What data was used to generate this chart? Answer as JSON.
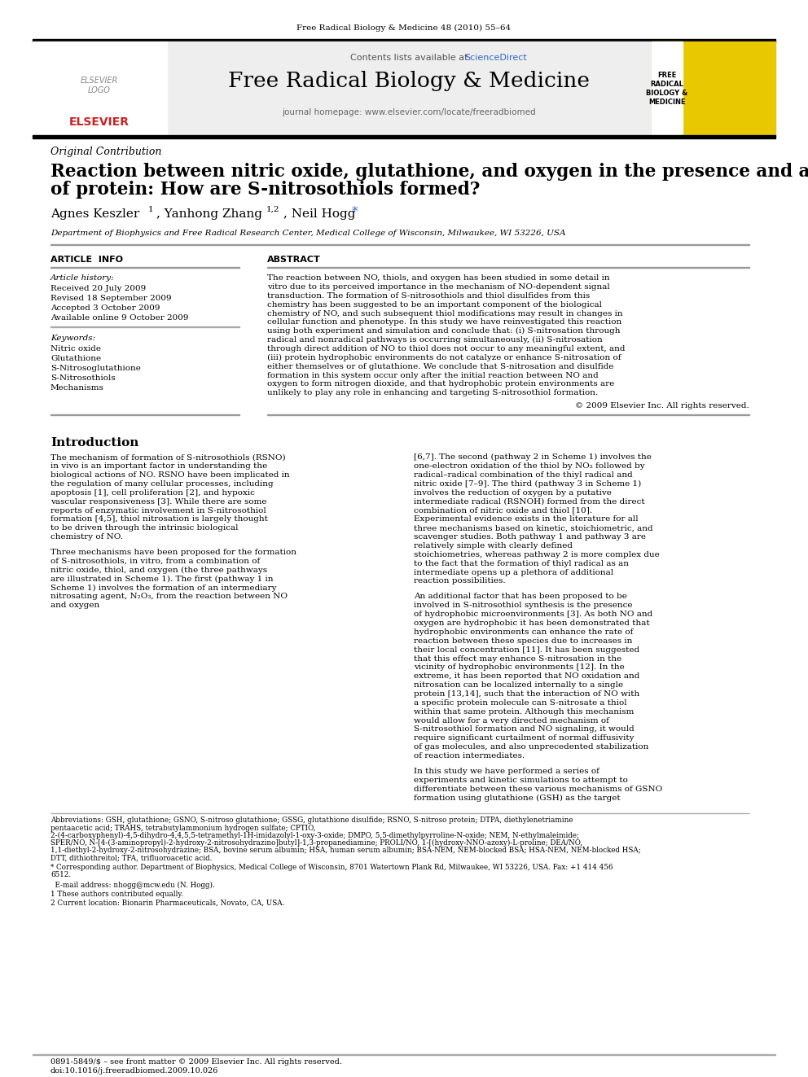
{
  "journal_header": "Free Radical Biology & Medicine 48 (2010) 55–64",
  "contents_line": "Contents lists available at ",
  "sciencedirect": "ScienceDirect",
  "journal_name": "Free Radical Biology & Medicine",
  "journal_homepage": "journal homepage: www.elsevier.com/locate/freeradbiomed",
  "article_type": "Original Contribution",
  "title_line1": "Reaction between nitric oxide, glutathione, and oxygen in the presence and absence",
  "title_line2": "of protein: How are S-nitrosothiols formed?",
  "affiliation": "Department of Biophysics and Free Radical Research Center, Medical College of Wisconsin, Milwaukee, WI 53226, USA",
  "article_info_header": "ARTICLE  INFO",
  "abstract_header": "ABSTRACT",
  "article_history_label": "Article history:",
  "received": "Received 20 July 2009",
  "revised": "Revised 18 September 2009",
  "accepted": "Accepted 3 October 2009",
  "online": "Available online 9 October 2009",
  "keywords_label": "Keywords:",
  "keywords": [
    "Nitric oxide",
    "Glutathione",
    "S-Nitrosoglutathione",
    "S-Nitrosothiols",
    "Mechanisms"
  ],
  "abstract_text": "The reaction between NO, thiols, and oxygen has been studied in some detail in vitro due to its perceived importance in the mechanism of NO-dependent signal transduction. The formation of S-nitrosothiols and thiol disulfides from this chemistry has been suggested to be an important component of the biological chemistry of NO, and such subsequent thiol modifications may result in changes in cellular function and phenotype. In this study we have reinvestigated this reaction using both experiment and simulation and conclude that: (i) S-nitrosation through radical and nonradical pathways is occurring simultaneously, (ii) S-nitrosation through direct addition of NO to thiol does not occur to any meaningful extent, and (iii) protein hydrophobic environments do not catalyze or enhance S-nitrosation of either themselves or of glutathione. We conclude that S-nitrosation and disulfide formation in this system occur only after the initial reaction between NO and oxygen to form nitrogen dioxide, and that hydrophobic protein environments are unlikely to play any role in enhancing and targeting S-nitrosothiol formation.",
  "copyright": "© 2009 Elsevier Inc. All rights reserved.",
  "intro_header": "Introduction",
  "intro_text1": "    The mechanism of formation of S-nitrosothiols (RSNO) in vivo is an important factor in understanding the biological actions of NO. RSNO have been implicated in the regulation of many cellular processes, including apoptosis [1], cell proliferation [2], and hypoxic vascular responsiveness [3]. While there are some reports of enzymatic involvement in S-nitrosothiol formation [4,5], thiol nitrosation is largely thought to be driven through the intrinsic biological chemistry of NO.",
  "intro_text2": "    Three mechanisms have been proposed for the formation of S-nitrosothiols, in vitro, from a combination of nitric oxide, thiol, and oxygen (the three pathways are illustrated in Scheme 1). The first (pathway 1 in Scheme 1) involves the formation of an intermediary nitrosating agent, N₂O₃, from the reaction between NO and oxygen",
  "right_col_text1": "[6,7]. The second (pathway 2 in Scheme 1) involves the one-electron oxidation of the thiol by NO₂ followed by radical–radical combination of the thiyl radical and nitric oxide [7–9]. The third (pathway 3 in Scheme 1) involves the reduction of oxygen by a putative intermediate radical (RSNOH) formed from the direct combination of nitric oxide and thiol [10]. Experimental evidence exists in the literature for all three mechanisms based on kinetic, stoichiometric, and scavenger studies. Both pathway 1 and pathway 3 are relatively simple with clearly defined stoichiometries, whereas pathway 2 is more complex due to the fact that the formation of thiyl radical as an intermediate opens up a plethora of additional reaction possibilities.",
  "right_col_text2": "    An additional factor that has been proposed to be involved in S-nitrosothiol synthesis is the presence of hydrophobic microenvironments [3]. As both NO and oxygen are hydrophobic it has been demonstrated that hydrophobic environments can enhance the rate of reaction between these species due to increases in their local concentration [11]. It has been suggested that this effect may enhance S-nitrosation in the vicinity of hydrophobic environments [12]. In the extreme, it has been reported that NO oxidation and nitrosation can be localized internally to a single protein [13,14], such that the interaction of NO with a specific protein molecule can S-nitrosate a thiol within that same protein. Although this mechanism would allow for a very directed mechanism of S-nitrosothiol formation and NO signaling, it would require significant curtailment of normal diffusivity of gas molecules, and also unprecedented stabilization of reaction intermediates.",
  "right_col_text3": "    In this study we have performed a series of experiments and kinetic simulations to attempt to differentiate between these various mechanisms of GSNO formation using glutathione (GSH) as the target",
  "footnote_abbrev": "Abbreviations: GSH, glutathione; GSNO, S-nitroso glutathione; GSSG, glutathione disulfide; RSNO, S-nitroso protein; DTPA, diethylenetriamine pentaacetic acid; TRAHS, tetrabutylammonium hydrogen sulfate; CPTIO, 2-(4-carboxyphenyl)-4,5-dihydro-4,4,5,5-tetramethyl-1H-imidazolyl-1-oxy-3-oxide; DMPO, 5,5-dimethylpyrroline-N-oxide; NEM, N-ethylmaleimide; SPER/NO, N-[4-(3-aminopropyl)-2-hydroxy-2-nitrosohydrazino]butyl]-1,3-propanediamine; PROLI/NO, 1-[(hydroxy-NNO-azoxy)-L-proline; DEA/NO, 1,1-diethyl-2-hydroxy-2-nitrosohydrazine; BSA, bovine serum albumin; HSA, human serum albumin; BSA-NEM, NEM-blocked BSA; HSA-NEM, NEM-blocked HSA; DTT, dithiothreitol; TFA, trifluoroacetic acid.",
  "footnote_corresponding": "* Corresponding author. Department of Biophysics, Medical College of Wisconsin, 8701 Watertown Plank Rd, Milwaukee, WI 53226, USA. Fax: +1 414 456 6512.",
  "footnote_email": "  E-mail address: nhogg@mcw.edu (N. Hogg).",
  "footnote_1": "1 These authors contributed equally.",
  "footnote_2": "2 Current location: Bionarin Pharmaceuticals, Novato, CA, USA.",
  "footer_issn": "0891-5849/$ – see front matter © 2009 Elsevier Inc. All rights reserved.",
  "footer_doi": "doi:10.1016/j.freeradbiomed.2009.10.026",
  "bg_color": "#ffffff",
  "blue_color": "#3366cc",
  "red_color": "#cc2222"
}
